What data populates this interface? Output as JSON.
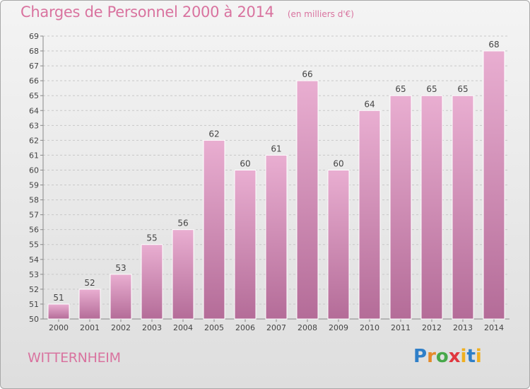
{
  "header": {
    "title": "Charges de Personnel 2000 à 2014",
    "unit": "(en milliers d'€)"
  },
  "footer": {
    "commune": "WITTERNHEIM",
    "logo_text": "Proxiti"
  },
  "colors": {
    "title": "#d9739f",
    "bar_top": "#e9aed1",
    "bar_bottom": "#b46c98",
    "logo_p": "#2f7fc8",
    "logo_r": "#e58a2a",
    "logo_o": "#47a84a",
    "logo_x": "#e0373f",
    "logo_i": "#f0b020"
  },
  "chart_data": {
    "type": "bar",
    "title": "Charges de Personnel 2000 à 2014",
    "subtitle": "(en milliers d'€)",
    "xlabel": "",
    "ylabel": "",
    "categories": [
      "2000",
      "2001",
      "2002",
      "2003",
      "2004",
      "2005",
      "2006",
      "2007",
      "2008",
      "2009",
      "2010",
      "2011",
      "2012",
      "2013",
      "2014"
    ],
    "values": [
      51,
      52,
      53,
      55,
      56,
      62,
      60,
      61,
      66,
      60,
      64,
      65,
      65,
      65,
      68
    ],
    "ylim": [
      50,
      69
    ],
    "yticks": [
      50,
      51,
      52,
      53,
      54,
      55,
      56,
      57,
      58,
      59,
      60,
      61,
      62,
      63,
      64,
      65,
      66,
      67,
      68,
      69
    ],
    "grid": true,
    "data_labels": true
  }
}
